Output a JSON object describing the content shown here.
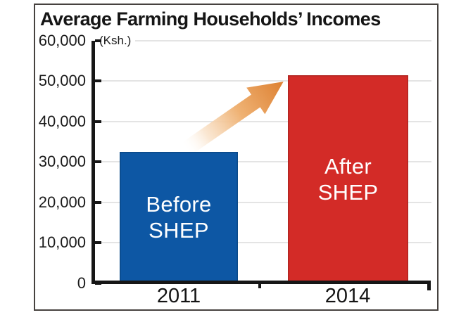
{
  "chart": {
    "title": "Average Farming Households’ Incomes",
    "unit_label": "(Ksh.)",
    "y_axis": {
      "min": 0,
      "max": 60000,
      "tick_interval": 10000,
      "tick_labels": [
        "60,000",
        "50,000",
        "40,000",
        "30,000",
        "20,000",
        "10,000",
        "0"
      ]
    },
    "bars": [
      {
        "name": "before-shep",
        "label_line1": "Before",
        "label_line2": "SHEP",
        "year": "2011",
        "value": 32500,
        "color": "#0d57a4"
      },
      {
        "name": "after-shep",
        "label_line1": "After",
        "label_line2": "SHEP",
        "year": "2014",
        "value": 51500,
        "color": "#d32b27"
      }
    ],
    "annotation": {
      "type": "growth-arrow",
      "color": "#dd8031"
    }
  },
  "chart_data": {
    "type": "bar",
    "title": "Average Farming Households’ Incomes",
    "ylabel": "Ksh.",
    "categories": [
      "2011",
      "2014"
    ],
    "values": [
      32500,
      51500
    ],
    "bar_labels": [
      "Before SHEP",
      "After SHEP"
    ],
    "bar_colors": [
      "#0d57a4",
      "#d32b27"
    ],
    "ylim": [
      0,
      60000
    ],
    "ytick_interval": 10000,
    "grid": true,
    "legend": false,
    "annotations": [
      "orange gradient arrow rising from the 2011 bar toward the top of the 2014 bar"
    ]
  }
}
